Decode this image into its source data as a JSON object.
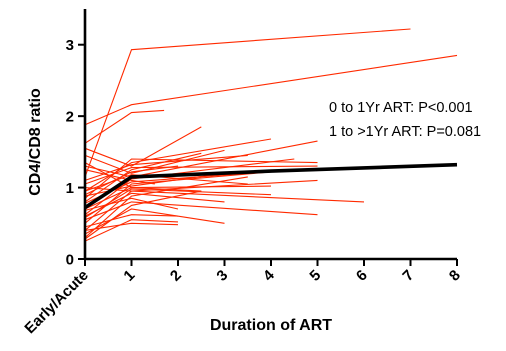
{
  "chart_data": {
    "type": "line",
    "title": "",
    "xlabel": "Duration of ART",
    "ylabel": "CD4/CD8 ratio",
    "x_ticks": [
      {
        "value": 0,
        "label": "Early/Acute"
      },
      {
        "value": 1,
        "label": "1"
      },
      {
        "value": 2,
        "label": "2"
      },
      {
        "value": 3,
        "label": "3"
      },
      {
        "value": 4,
        "label": "4"
      },
      {
        "value": 5,
        "label": "5"
      },
      {
        "value": 6,
        "label": "6"
      },
      {
        "value": 7,
        "label": "7"
      },
      {
        "value": 8,
        "label": "8"
      }
    ],
    "y_ticks": [
      0,
      1,
      2,
      3
    ],
    "xlim": [
      0,
      8
    ],
    "ylim": [
      0,
      3.5
    ],
    "grid": false,
    "annotations": [
      {
        "text": "0 to 1Yr ART: P<0.001"
      },
      {
        "text": "1 to >1Yr ART: P=0.081"
      }
    ],
    "series": [
      {
        "color": "#000000",
        "kind": "mean",
        "x": [
          0,
          1,
          4,
          8
        ],
        "y": [
          0.72,
          1.15,
          1.23,
          1.32
        ]
      }
    ],
    "individual_series": [
      {
        "x": [
          0,
          1,
          7
        ],
        "y": [
          1.15,
          2.93,
          3.22
        ]
      },
      {
        "x": [
          0,
          1,
          8
        ],
        "y": [
          1.88,
          2.16,
          2.85
        ]
      },
      {
        "x": [
          0,
          1,
          1.7
        ],
        "y": [
          1.62,
          2.05,
          2.08
        ]
      },
      {
        "x": [
          0,
          1,
          2.5
        ],
        "y": [
          1.55,
          1.3,
          1.85
        ]
      },
      {
        "x": [
          0,
          1,
          4
        ],
        "y": [
          0.95,
          1.35,
          1.68
        ]
      },
      {
        "x": [
          0,
          1,
          3
        ],
        "y": [
          1.45,
          1.2,
          1.52
        ]
      },
      {
        "x": [
          0,
          1,
          5
        ],
        "y": [
          1.3,
          1.15,
          1.65
        ]
      },
      {
        "x": [
          0,
          1,
          5
        ],
        "y": [
          0.85,
          1.4,
          1.35
        ]
      },
      {
        "x": [
          0,
          1,
          4.5
        ],
        "y": [
          0.62,
          1.12,
          1.4
        ]
      },
      {
        "x": [
          0,
          1,
          3.5
        ],
        "y": [
          1.1,
          1.32,
          1.45
        ]
      },
      {
        "x": [
          0,
          1,
          2.5
        ],
        "y": [
          0.8,
          1.25,
          1.48
        ]
      },
      {
        "x": [
          0,
          1,
          4
        ],
        "y": [
          0.5,
          1.05,
          1.22
        ]
      },
      {
        "x": [
          0,
          1,
          2
        ],
        "y": [
          0.9,
          1.22,
          1.3
        ]
      },
      {
        "x": [
          0,
          1,
          5
        ],
        "y": [
          0.4,
          0.95,
          1.1
        ]
      },
      {
        "x": [
          0,
          1,
          4
        ],
        "y": [
          0.7,
          1.0,
          1.02
        ]
      },
      {
        "x": [
          0,
          1,
          3.5
        ],
        "y": [
          0.3,
          0.88,
          1.15
        ]
      },
      {
        "x": [
          0,
          1,
          6
        ],
        "y": [
          1.0,
          0.95,
          0.8
        ]
      },
      {
        "x": [
          0,
          1,
          5
        ],
        "y": [
          0.55,
          0.8,
          0.62
        ]
      },
      {
        "x": [
          0,
          1,
          3
        ],
        "y": [
          0.35,
          0.7,
          0.5
        ]
      },
      {
        "x": [
          0,
          1,
          2
        ],
        "y": [
          0.45,
          0.62,
          0.6
        ]
      },
      {
        "x": [
          0,
          1,
          2
        ],
        "y": [
          0.25,
          0.55,
          0.52
        ]
      },
      {
        "x": [
          0,
          1,
          1.5
        ],
        "y": [
          1.25,
          1.1,
          1.05
        ]
      },
      {
        "x": [
          0,
          1,
          4.5
        ],
        "y": [
          0.78,
          1.08,
          1.25
        ]
      },
      {
        "x": [
          0,
          1,
          3
        ],
        "y": [
          0.6,
          0.92,
          0.8
        ]
      },
      {
        "x": [
          0,
          1,
          2.5
        ],
        "y": [
          0.28,
          0.75,
          0.95
        ]
      },
      {
        "x": [
          0,
          1,
          3.5
        ],
        "y": [
          0.95,
          1.18,
          1.05
        ]
      },
      {
        "x": [
          0,
          1,
          2
        ],
        "y": [
          0.68,
          0.85,
          0.7
        ]
      },
      {
        "x": [
          0,
          1,
          5
        ],
        "y": [
          1.05,
          1.28,
          1.3
        ]
      },
      {
        "x": [
          0,
          1,
          4
        ],
        "y": [
          0.58,
          0.98,
          0.9
        ]
      },
      {
        "x": [
          0,
          1,
          3
        ],
        "y": [
          0.88,
          1.02,
          1.2
        ]
      },
      {
        "x": [
          0,
          1,
          2.5
        ],
        "y": [
          1.35,
          1.0,
          0.95
        ]
      },
      {
        "x": [
          0,
          1,
          2
        ],
        "y": [
          0.4,
          0.5,
          0.48
        ]
      }
    ],
    "colors": {
      "individual": "#ff2a00",
      "mean": "#000000"
    }
  }
}
